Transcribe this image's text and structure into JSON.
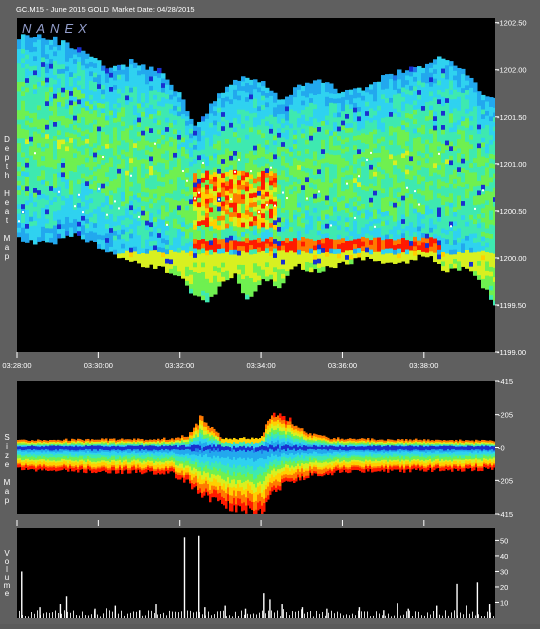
{
  "header": {
    "symbol": "GC.M15 - June 2015 GOLD",
    "market_date_label": "Market Date: 04/28/2015",
    "logo": "NANEX"
  },
  "colors": {
    "background": "#000000",
    "frame": "#5f5f5f",
    "text": "#ffffff",
    "heat_scale": [
      "#1a2fd0",
      "#1f7ae8",
      "#22a8ee",
      "#2fd2f0",
      "#3ee9b0",
      "#6ff050",
      "#d8f020",
      "#ffd000",
      "#ff7a00",
      "#ff1a00"
    ]
  },
  "chart_data": [
    {
      "type": "heatmap",
      "panel": "depth",
      "ylabel": "Depth Heat Map",
      "x_ticks": [
        "03:28:00",
        "03:30:00",
        "03:32:00",
        "03:34:00",
        "03:36:00",
        "03:38:00"
      ],
      "x_range": [
        "03:28:00",
        "03:39:45"
      ],
      "y_ticks": [
        1202.5,
        1202.0,
        1201.5,
        1201.0,
        1200.5,
        1200.0,
        1199.5,
        1199.0
      ],
      "y_tick_labels": [
        "-1202.50",
        "-1202.00",
        "-1201.50",
        "-1201.00",
        "-1200.50",
        "-1200.00",
        "-1199.50",
        "-1199.00"
      ],
      "ylim": [
        1199.0,
        1202.55
      ],
      "envelope": {
        "time_min": [
          0,
          0.7,
          1.4,
          2.1,
          2.8,
          3.5,
          4.0,
          4.3,
          4.7,
          5.0,
          5.3,
          5.6,
          6.0,
          6.4,
          6.8,
          7.2,
          7.6,
          8.0,
          8.5,
          9.0,
          9.5,
          10.0,
          10.5,
          11.0,
          11.4,
          11.75
        ],
        "top": [
          1202.35,
          1202.3,
          1202.2,
          1202.0,
          1202.05,
          1201.95,
          1201.7,
          1201.35,
          1201.55,
          1201.75,
          1201.9,
          1201.9,
          1201.85,
          1201.65,
          1201.75,
          1201.85,
          1201.8,
          1201.75,
          1201.8,
          1201.9,
          1201.95,
          1202.05,
          1202.1,
          1201.95,
          1201.7,
          1201.65
        ],
        "bottom": [
          1200.2,
          1200.15,
          1200.25,
          1200.1,
          1199.95,
          1199.9,
          1199.8,
          1199.6,
          1199.55,
          1199.75,
          1199.85,
          1199.55,
          1199.8,
          1199.7,
          1199.95,
          1199.85,
          1199.9,
          1199.95,
          1200.0,
          1199.95,
          1199.95,
          1200.05,
          1199.85,
          1199.9,
          1199.7,
          1199.5
        ]
      },
      "bid_band": {
        "price": 1200.12,
        "time_start": 4.3,
        "time_end": 10.4,
        "level": 0.85
      },
      "hot_cluster": {
        "time_start": 4.3,
        "time_end": 6.3,
        "price_low": 1200.3,
        "price_high": 1200.9,
        "level": 0.95
      }
    },
    {
      "type": "heatmap",
      "panel": "size",
      "ylabel": "Size Map",
      "y_tick_labels": [
        "-415",
        "-205",
        "-0",
        "-205",
        "-415"
      ],
      "y_ticks": [
        415,
        205,
        0,
        -205,
        -415
      ],
      "ylim": [
        -415,
        415
      ],
      "upper_extent": {
        "time_min": [
          0,
          1,
          2,
          3,
          3.8,
          4.2,
          4.5,
          5.0,
          5.5,
          6.0,
          6.2,
          6.5,
          6.8,
          7.2,
          7.6,
          8,
          9,
          10,
          11,
          11.75
        ],
        "value": [
          45,
          48,
          50,
          50,
          55,
          75,
          190,
          60,
          55,
          65,
          210,
          205,
          150,
          85,
          60,
          55,
          50,
          48,
          45,
          40
        ]
      },
      "lower_extent": {
        "time_min": [
          0,
          1,
          2,
          3,
          3.8,
          4.2,
          4.6,
          5.0,
          5.5,
          5.8,
          6.0,
          6.3,
          6.8,
          7.2,
          7.6,
          8,
          9,
          10,
          11,
          11.75
        ],
        "value": [
          -130,
          -140,
          -150,
          -150,
          -160,
          -220,
          -300,
          -345,
          -380,
          -410,
          -390,
          -260,
          -200,
          -170,
          -160,
          -150,
          -145,
          -140,
          -135,
          -130
        ]
      }
    },
    {
      "type": "bar",
      "panel": "volume",
      "ylabel": "Volume",
      "y_ticks": [
        10,
        20,
        30,
        40,
        50
      ],
      "y_tick_labels": [
        "10",
        "20",
        "30",
        "40",
        "50"
      ],
      "ylim": [
        0,
        58
      ],
      "spikes": [
        {
          "t": 0.1,
          "v": 30
        },
        {
          "t": 0.55,
          "v": 7
        },
        {
          "t": 1.05,
          "v": 9
        },
        {
          "t": 1.2,
          "v": 14
        },
        {
          "t": 1.9,
          "v": 6
        },
        {
          "t": 2.4,
          "v": 8
        },
        {
          "t": 3.0,
          "v": 5
        },
        {
          "t": 3.4,
          "v": 9
        },
        {
          "t": 4.1,
          "v": 52
        },
        {
          "t": 4.45,
          "v": 53
        },
        {
          "t": 4.6,
          "v": 7
        },
        {
          "t": 5.1,
          "v": 8
        },
        {
          "t": 5.6,
          "v": 6
        },
        {
          "t": 6.05,
          "v": 16
        },
        {
          "t": 6.2,
          "v": 12
        },
        {
          "t": 6.5,
          "v": 9
        },
        {
          "t": 7.0,
          "v": 7
        },
        {
          "t": 7.6,
          "v": 6
        },
        {
          "t": 8.4,
          "v": 7
        },
        {
          "t": 9.0,
          "v": 5
        },
        {
          "t": 9.6,
          "v": 6
        },
        {
          "t": 10.3,
          "v": 8
        },
        {
          "t": 10.8,
          "v": 22
        },
        {
          "t": 11.3,
          "v": 23
        },
        {
          "t": 11.6,
          "v": 9
        }
      ]
    }
  ]
}
